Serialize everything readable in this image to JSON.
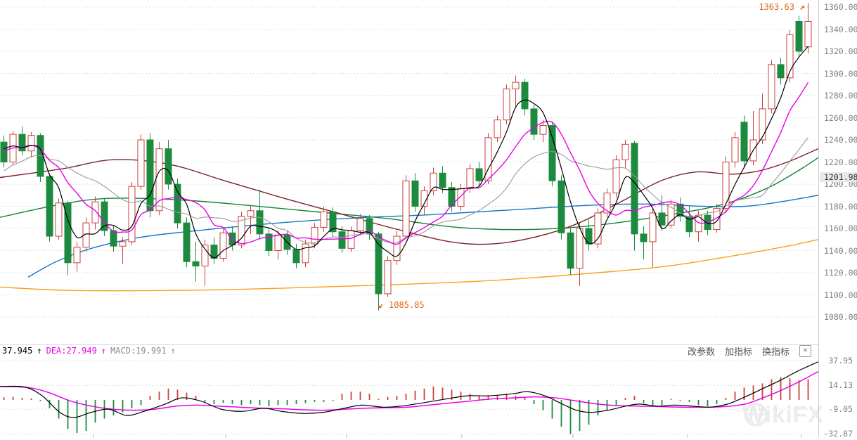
{
  "header": {
    "dif": {
      "value": "37.945",
      "arrow": "↑"
    },
    "dea": {
      "label": "DEA:27.949",
      "arrow": "↑"
    },
    "macd": {
      "label": "MACD:19.991",
      "arrow": "↑"
    },
    "buttons": [
      "改参数",
      "加指标",
      "换指标"
    ],
    "close": "×"
  },
  "annotations": {
    "high": {
      "text": "1363.63",
      "arrow": "↗"
    },
    "low": {
      "text": "1085.85",
      "arrow": "↙"
    }
  },
  "price_tag": "1201.98",
  "watermark": "WikiFX",
  "colors": {
    "up": "#c9423d",
    "down": "#1d8b3f",
    "ma_fast": "#000000",
    "ma_mid": "#e800e8",
    "ma_slow": "#9a9a9a",
    "ma_30": "#7c2128",
    "ma_60": "#148138",
    "ma_120": "#1576c8",
    "ma_250": "#f6a11c",
    "dif": "#000000",
    "dea": "#e800e8",
    "grid": "#c9c9c9",
    "axis_text": "#7f7f7f",
    "annotation": "#e2661a"
  },
  "x_ticks": [
    133,
    321,
    493,
    657,
    815,
    978,
    1140
  ],
  "chart_data": [
    {
      "type": "candlestick",
      "y_axis": {
        "min": 1080,
        "max": 1360,
        "tick_step": 20,
        "tick_labels": [
          "1360.00",
          "1340.00",
          "1320.00",
          "1300.00",
          "1280.00",
          "1260.00",
          "1240.00",
          "1220.00",
          "1200.00",
          "1180.00",
          "1160.00",
          "1140.00",
          "1120.00",
          "1100.00",
          "1080.00"
        ]
      },
      "max_price": 1363.63,
      "min_price": 1085.85,
      "last_quote": 1201.98,
      "candles": [
        [
          1238,
          1244,
          1215,
          1220
        ],
        [
          1220,
          1248,
          1217,
          1245
        ],
        [
          1245,
          1252,
          1226,
          1230
        ],
        [
          1230,
          1247,
          1224,
          1244
        ],
        [
          1244,
          1246,
          1202,
          1207
        ],
        [
          1207,
          1210,
          1148,
          1153
        ],
        [
          1153,
          1187,
          1150,
          1183
        ],
        [
          1183,
          1185,
          1118,
          1129
        ],
        [
          1129,
          1148,
          1121,
          1143
        ],
        [
          1143,
          1170,
          1139,
          1165
        ],
        [
          1165,
          1189,
          1159,
          1184
        ],
        [
          1184,
          1187,
          1153,
          1158
        ],
        [
          1158,
          1163,
          1139,
          1144
        ],
        [
          1144,
          1152,
          1128,
          1148
        ],
        [
          1148,
          1202,
          1145,
          1198
        ],
        [
          1198,
          1245,
          1195,
          1240
        ],
        [
          1240,
          1246,
          1170,
          1176
        ],
        [
          1176,
          1238,
          1172,
          1232
        ],
        [
          1232,
          1240,
          1195,
          1200
        ],
        [
          1200,
          1205,
          1160,
          1165
        ],
        [
          1165,
          1170,
          1125,
          1130
        ],
        [
          1130,
          1148,
          1112,
          1126
        ],
        [
          1126,
          1150,
          1108,
          1145
        ],
        [
          1145,
          1152,
          1128,
          1133
        ],
        [
          1133,
          1160,
          1130,
          1156
        ],
        [
          1156,
          1162,
          1140,
          1145
        ],
        [
          1145,
          1175,
          1142,
          1171
        ],
        [
          1171,
          1180,
          1155,
          1176
        ],
        [
          1176,
          1195,
          1150,
          1155
        ],
        [
          1155,
          1160,
          1135,
          1140
        ],
        [
          1140,
          1158,
          1132,
          1154
        ],
        [
          1154,
          1158,
          1136,
          1141
        ],
        [
          1141,
          1146,
          1124,
          1129
        ],
        [
          1129,
          1150,
          1125,
          1146
        ],
        [
          1146,
          1165,
          1142,
          1161
        ],
        [
          1161,
          1180,
          1157,
          1175
        ],
        [
          1175,
          1179,
          1152,
          1157
        ],
        [
          1157,
          1162,
          1138,
          1142
        ],
        [
          1142,
          1162,
          1139,
          1158
        ],
        [
          1158,
          1173,
          1154,
          1169
        ],
        [
          1169,
          1172,
          1150,
          1155
        ],
        [
          1155,
          1157,
          1085.85,
          1101
        ],
        [
          1101,
          1135,
          1098,
          1131
        ],
        [
          1131,
          1158,
          1127,
          1153
        ],
        [
          1153,
          1208,
          1150,
          1203
        ],
        [
          1203,
          1210,
          1175,
          1180
        ],
        [
          1180,
          1198,
          1172,
          1194
        ],
        [
          1194,
          1215,
          1190,
          1210
        ],
        [
          1210,
          1216,
          1192,
          1197
        ],
        [
          1197,
          1202,
          1175,
          1180
        ],
        [
          1180,
          1200,
          1176,
          1196
        ],
        [
          1196,
          1218,
          1192,
          1214
        ],
        [
          1214,
          1220,
          1198,
          1203
        ],
        [
          1203,
          1246,
          1200,
          1242
        ],
        [
          1242,
          1262,
          1238,
          1258
        ],
        [
          1258,
          1290,
          1254,
          1286
        ],
        [
          1286,
          1298,
          1270,
          1292
        ],
        [
          1292,
          1295,
          1262,
          1268
        ],
        [
          1268,
          1272,
          1240,
          1245
        ],
        [
          1245,
          1258,
          1238,
          1253
        ],
        [
          1253,
          1256,
          1198,
          1203
        ],
        [
          1203,
          1208,
          1150,
          1156
        ],
        [
          1156,
          1160,
          1118,
          1124
        ],
        [
          1124,
          1165,
          1108,
          1160
        ],
        [
          1160,
          1168,
          1140,
          1146
        ],
        [
          1146,
          1178,
          1142,
          1174
        ],
        [
          1174,
          1196,
          1170,
          1192
        ],
        [
          1192,
          1226,
          1188,
          1222
        ],
        [
          1222,
          1240,
          1214,
          1236
        ],
        [
          1237,
          1239,
          1140,
          1155
        ],
        [
          1155,
          1162,
          1132,
          1148
        ],
        [
          1148,
          1178,
          1125,
          1174
        ],
        [
          1174,
          1190,
          1158,
          1163
        ],
        [
          1163,
          1186,
          1160,
          1182
        ],
        [
          1182,
          1188,
          1166,
          1171
        ],
        [
          1171,
          1180,
          1152,
          1157
        ],
        [
          1157,
          1176,
          1148,
          1172
        ],
        [
          1172,
          1176,
          1154,
          1159
        ],
        [
          1159,
          1182,
          1156,
          1178
        ],
        [
          1178,
          1225,
          1174,
          1220
        ],
        [
          1220,
          1247,
          1215,
          1242
        ],
        [
          1256,
          1262,
          1215,
          1221
        ],
        [
          1221,
          1266,
          1217,
          1240
        ],
        [
          1240,
          1282,
          1236,
          1268
        ],
        [
          1268,
          1312,
          1264,
          1308
        ],
        [
          1308,
          1314,
          1290,
          1296
        ],
        [
          1296,
          1339,
          1292,
          1335
        ],
        [
          1347,
          1352,
          1316,
          1320
        ],
        [
          1324,
          1363.63,
          1318,
          1347
        ]
      ],
      "ma_seed": [
        1160,
        1168,
        1176,
        1184,
        1192,
        1200,
        1208,
        1215,
        1221,
        1226,
        1230,
        1233,
        1235,
        1236,
        1237
      ],
      "overlays": {
        "ma30": [
          [
            0,
            1206
          ],
          [
            90,
            1214
          ],
          [
            160,
            1222
          ],
          [
            240,
            1218
          ],
          [
            320,
            1203
          ],
          [
            400,
            1188
          ],
          [
            480,
            1174
          ],
          [
            560,
            1160
          ],
          [
            640,
            1148
          ],
          [
            700,
            1146
          ],
          [
            760,
            1152
          ],
          [
            820,
            1164
          ],
          [
            880,
            1183
          ],
          [
            940,
            1203
          ],
          [
            990,
            1211
          ],
          [
            1040,
            1209
          ],
          [
            1080,
            1212
          ],
          [
            1120,
            1220
          ],
          [
            1164,
            1232
          ]
        ],
        "ma60": [
          [
            0,
            1170
          ],
          [
            80,
            1181
          ],
          [
            150,
            1187
          ],
          [
            250,
            1186
          ],
          [
            350,
            1181
          ],
          [
            450,
            1175
          ],
          [
            550,
            1169
          ],
          [
            650,
            1161
          ],
          [
            750,
            1159
          ],
          [
            850,
            1163
          ],
          [
            950,
            1172
          ],
          [
            1030,
            1182
          ],
          [
            1090,
            1196
          ],
          [
            1135,
            1212
          ],
          [
            1164,
            1224
          ]
        ],
        "ma120": [
          [
            40,
            1116
          ],
          [
            80,
            1130
          ],
          [
            130,
            1142
          ],
          [
            200,
            1152
          ],
          [
            280,
            1158
          ],
          [
            360,
            1163
          ],
          [
            440,
            1167
          ],
          [
            520,
            1170
          ],
          [
            600,
            1172
          ],
          [
            680,
            1175
          ],
          [
            760,
            1178
          ],
          [
            840,
            1181
          ],
          [
            920,
            1182
          ],
          [
            1000,
            1180
          ],
          [
            1060,
            1180
          ],
          [
            1110,
            1184
          ],
          [
            1164,
            1190
          ]
        ],
        "ma250": [
          [
            0,
            1107
          ],
          [
            100,
            1104
          ],
          [
            250,
            1104
          ],
          [
            400,
            1106
          ],
          [
            550,
            1109
          ],
          [
            700,
            1113
          ],
          [
            850,
            1120
          ],
          [
            950,
            1126
          ],
          [
            1050,
            1136
          ],
          [
            1120,
            1144
          ],
          [
            1164,
            1150
          ]
        ]
      }
    },
    {
      "type": "macd",
      "values": {
        "dif": 37.945,
        "dea": 27.949,
        "macd": 19.991
      },
      "y_axis": {
        "tick_labels": [
          "37.95",
          "14.13",
          "-9.05",
          "-32.87"
        ],
        "tick_values": [
          37.95,
          14.13,
          -9.05,
          -32.87
        ]
      },
      "histogram": [
        2.5,
        3,
        2,
        1.5,
        -1,
        -8,
        -18,
        -28,
        -32,
        -30,
        -22,
        -18,
        -15,
        -12,
        -8,
        -5,
        4,
        8,
        11,
        10,
        7,
        4,
        -2,
        -4,
        -3,
        -4,
        -5,
        -4,
        -5,
        -6,
        -5,
        -5,
        -4,
        -3,
        -2,
        -2,
        -1,
        6,
        8,
        8,
        6,
        1,
        3,
        4,
        6,
        9,
        11,
        13,
        12,
        10,
        8,
        6,
        4,
        4,
        5,
        6,
        4,
        2,
        -4,
        -10,
        -18,
        -26,
        -33,
        -30,
        -24,
        -15,
        -10,
        -5,
        2,
        4,
        -3,
        -6,
        -5,
        1,
        -1,
        -2,
        -5,
        -6,
        -4,
        2,
        8,
        12,
        14,
        16,
        20,
        22,
        21,
        19,
        20
      ],
      "dif_line": [
        [
          0,
          13
        ],
        [
          35,
          12.5
        ],
        [
          60,
          4
        ],
        [
          85,
          -12
        ],
        [
          105,
          -17
        ],
        [
          130,
          -12
        ],
        [
          155,
          -9
        ],
        [
          180,
          -15
        ],
        [
          205,
          -11
        ],
        [
          235,
          -4
        ],
        [
          258,
          2
        ],
        [
          285,
          -1
        ],
        [
          315,
          -9
        ],
        [
          345,
          -11
        ],
        [
          375,
          -8
        ],
        [
          400,
          -11
        ],
        [
          430,
          -13
        ],
        [
          460,
          -12
        ],
        [
          490,
          -8
        ],
        [
          515,
          -5
        ],
        [
          545,
          -7
        ],
        [
          570,
          -6
        ],
        [
          600,
          -3
        ],
        [
          635,
          1
        ],
        [
          665,
          4
        ],
        [
          695,
          4
        ],
        [
          730,
          6
        ],
        [
          750,
          8
        ],
        [
          775,
          4
        ],
        [
          800,
          -4
        ],
        [
          820,
          -10
        ],
        [
          840,
          -12
        ],
        [
          865,
          -10
        ],
        [
          890,
          -6
        ],
        [
          910,
          -4
        ],
        [
          935,
          -6
        ],
        [
          960,
          -5
        ],
        [
          985,
          -6
        ],
        [
          1010,
          -7
        ],
        [
          1035,
          -4
        ],
        [
          1060,
          3
        ],
        [
          1085,
          11
        ],
        [
          1110,
          19
        ],
        [
          1135,
          28
        ],
        [
          1164,
          37
        ]
      ],
      "dea_line": [
        [
          0,
          13
        ],
        [
          40,
          12
        ],
        [
          70,
          7
        ],
        [
          100,
          -1
        ],
        [
          130,
          -6
        ],
        [
          160,
          -9
        ],
        [
          190,
          -10
        ],
        [
          220,
          -9
        ],
        [
          250,
          -6
        ],
        [
          280,
          -5
        ],
        [
          310,
          -6
        ],
        [
          340,
          -7
        ],
        [
          370,
          -8
        ],
        [
          400,
          -8.5
        ],
        [
          430,
          -9.5
        ],
        [
          460,
          -10
        ],
        [
          490,
          -9
        ],
        [
          520,
          -8
        ],
        [
          550,
          -7.5
        ],
        [
          580,
          -7
        ],
        [
          610,
          -5
        ],
        [
          640,
          -3
        ],
        [
          670,
          -1
        ],
        [
          700,
          1
        ],
        [
          730,
          2
        ],
        [
          760,
          3
        ],
        [
          790,
          2
        ],
        [
          820,
          -1
        ],
        [
          850,
          -4
        ],
        [
          880,
          -5.5
        ],
        [
          910,
          -6
        ],
        [
          940,
          -6.5
        ],
        [
          970,
          -7
        ],
        [
          1000,
          -7
        ],
        [
          1030,
          -6.5
        ],
        [
          1060,
          -4
        ],
        [
          1085,
          2
        ],
        [
          1110,
          9
        ],
        [
          1135,
          17
        ],
        [
          1164,
          27.5
        ]
      ]
    }
  ]
}
